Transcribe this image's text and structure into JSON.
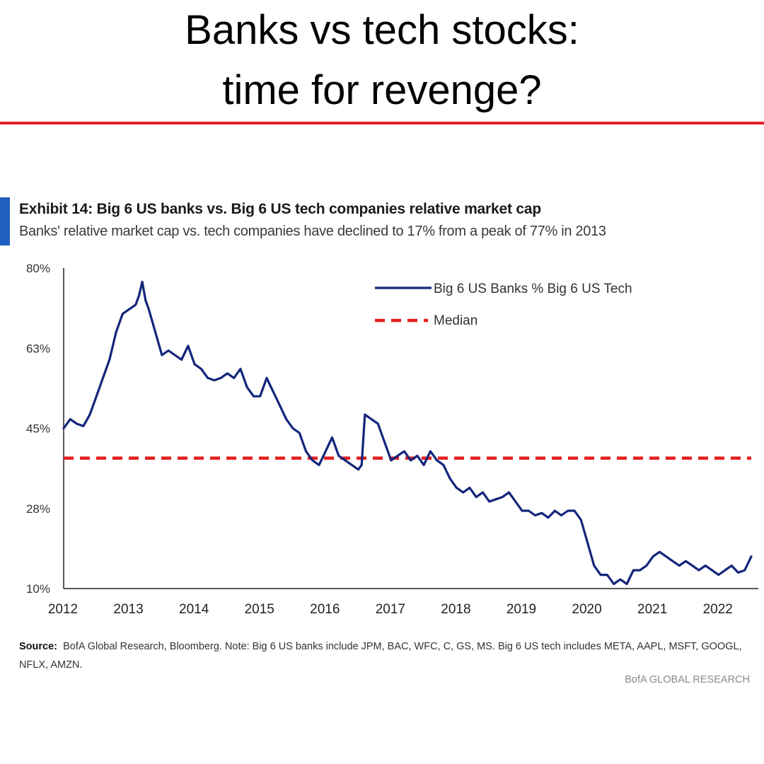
{
  "headline": {
    "line1": "Banks vs tech stocks:",
    "line2": "time for revenge?"
  },
  "colors": {
    "rule": "#e0202a",
    "accent_bar": "#1f5fbf",
    "series_line": "#14257a",
    "median_line": "#e41e1e",
    "axis": "#222222"
  },
  "exhibit": {
    "title": "Exhibit 14: Big 6 US banks vs. Big 6 US tech companies relative market cap",
    "subtitle": "Banks' relative market cap vs. tech companies have declined to 17% from a peak of 77% in 2013"
  },
  "chart_data": {
    "type": "line",
    "title": "Exhibit 14: Big 6 US banks vs. Big 6 US tech companies relative market cap",
    "subtitle": "Banks' relative market cap vs. tech companies have declined to 17% from a peak of 77% in 2013",
    "xlabel": "",
    "ylabel": "",
    "xlim": [
      2012.0,
      2022.5
    ],
    "ylim": [
      10,
      80
    ],
    "y_ticks": [
      "80%",
      "63%",
      "45%",
      "28%",
      "10%"
    ],
    "y_tick_values": [
      80,
      62.5,
      45,
      27.5,
      10
    ],
    "x_ticks": [
      "2012",
      "2013",
      "2014",
      "2015",
      "2016",
      "2017",
      "2018",
      "2019",
      "2020",
      "2021",
      "2022"
    ],
    "x_tick_values": [
      2012,
      2013,
      2014,
      2015,
      2016,
      2017,
      2018,
      2019,
      2020,
      2021,
      2022
    ],
    "grid": false,
    "legend_position": "top-right",
    "series": [
      {
        "name": "Big 6 US Banks % Big 6 US Tech",
        "style": "solid",
        "x": [
          2012.0,
          2012.1,
          2012.2,
          2012.3,
          2012.4,
          2012.5,
          2012.6,
          2012.7,
          2012.8,
          2012.9,
          2013.0,
          2013.1,
          2013.15,
          2013.2,
          2013.25,
          2013.3,
          2013.4,
          2013.5,
          2013.6,
          2013.7,
          2013.8,
          2013.9,
          2014.0,
          2014.1,
          2014.2,
          2014.3,
          2014.4,
          2014.5,
          2014.6,
          2014.7,
          2014.8,
          2014.9,
          2015.0,
          2015.1,
          2015.2,
          2015.3,
          2015.4,
          2015.5,
          2015.6,
          2015.7,
          2015.8,
          2015.9,
          2016.0,
          2016.1,
          2016.2,
          2016.3,
          2016.4,
          2016.5,
          2016.55,
          2016.6,
          2016.7,
          2016.8,
          2016.9,
          2017.0,
          2017.1,
          2017.2,
          2017.3,
          2017.4,
          2017.5,
          2017.6,
          2017.7,
          2017.8,
          2017.9,
          2018.0,
          2018.1,
          2018.2,
          2018.3,
          2018.4,
          2018.5,
          2018.6,
          2018.7,
          2018.8,
          2018.9,
          2019.0,
          2019.1,
          2019.2,
          2019.3,
          2019.4,
          2019.5,
          2019.6,
          2019.7,
          2019.8,
          2019.9,
          2020.0,
          2020.1,
          2020.2,
          2020.3,
          2020.4,
          2020.5,
          2020.6,
          2020.7,
          2020.8,
          2020.9,
          2021.0,
          2021.1,
          2021.2,
          2021.3,
          2021.4,
          2021.5,
          2021.6,
          2021.7,
          2021.8,
          2021.9,
          2022.0,
          2022.1,
          2022.2,
          2022.3,
          2022.4,
          2022.5
        ],
        "values": [
          45.0,
          47.0,
          46.0,
          45.5,
          48.0,
          52.0,
          56.0,
          60.0,
          66.0,
          70.0,
          71.0,
          72.0,
          74.0,
          77.0,
          73.0,
          71.0,
          66.0,
          61.0,
          62.0,
          61.0,
          60.0,
          63.0,
          59.0,
          58.0,
          56.0,
          55.5,
          56.0,
          57.0,
          56.0,
          58.0,
          54.0,
          52.0,
          52.0,
          56.0,
          53.0,
          50.0,
          47.0,
          45.0,
          44.0,
          40.0,
          38.0,
          37.0,
          40.0,
          43.0,
          39.0,
          38.0,
          37.0,
          36.0,
          37.0,
          48.0,
          47.0,
          46.0,
          42.0,
          38.0,
          39.0,
          40.0,
          38.0,
          39.0,
          37.0,
          40.0,
          38.0,
          37.0,
          34.0,
          32.0,
          31.0,
          32.0,
          30.0,
          31.0,
          29.0,
          29.5,
          30.0,
          31.0,
          29.0,
          27.0,
          27.0,
          26.0,
          26.5,
          25.5,
          27.0,
          26.0,
          27.0,
          27.0,
          25.0,
          20.0,
          15.0,
          13.0,
          13.0,
          11.0,
          12.0,
          11.0,
          14.0,
          14.0,
          15.0,
          17.0,
          18.0,
          17.0,
          16.0,
          15.0,
          16.0,
          15.0,
          14.0,
          15.0,
          14.0,
          13.0,
          14.0,
          15.0,
          13.5,
          14.0,
          17.0
        ]
      },
      {
        "name": "Median",
        "style": "dashed",
        "x": [
          2012.0,
          2022.5
        ],
        "values": [
          38.5,
          38.5
        ]
      }
    ],
    "source_label": "Source:",
    "source_text": "BofA Global Research, Bloomberg. Note: Big 6 US banks include JPM, BAC, WFC, C, GS, MS. Big 6 US tech includes META, AAPL, MSFT, GOOGL, NFLX, AMZN.",
    "brand": "BofA GLOBAL RESEARCH"
  }
}
